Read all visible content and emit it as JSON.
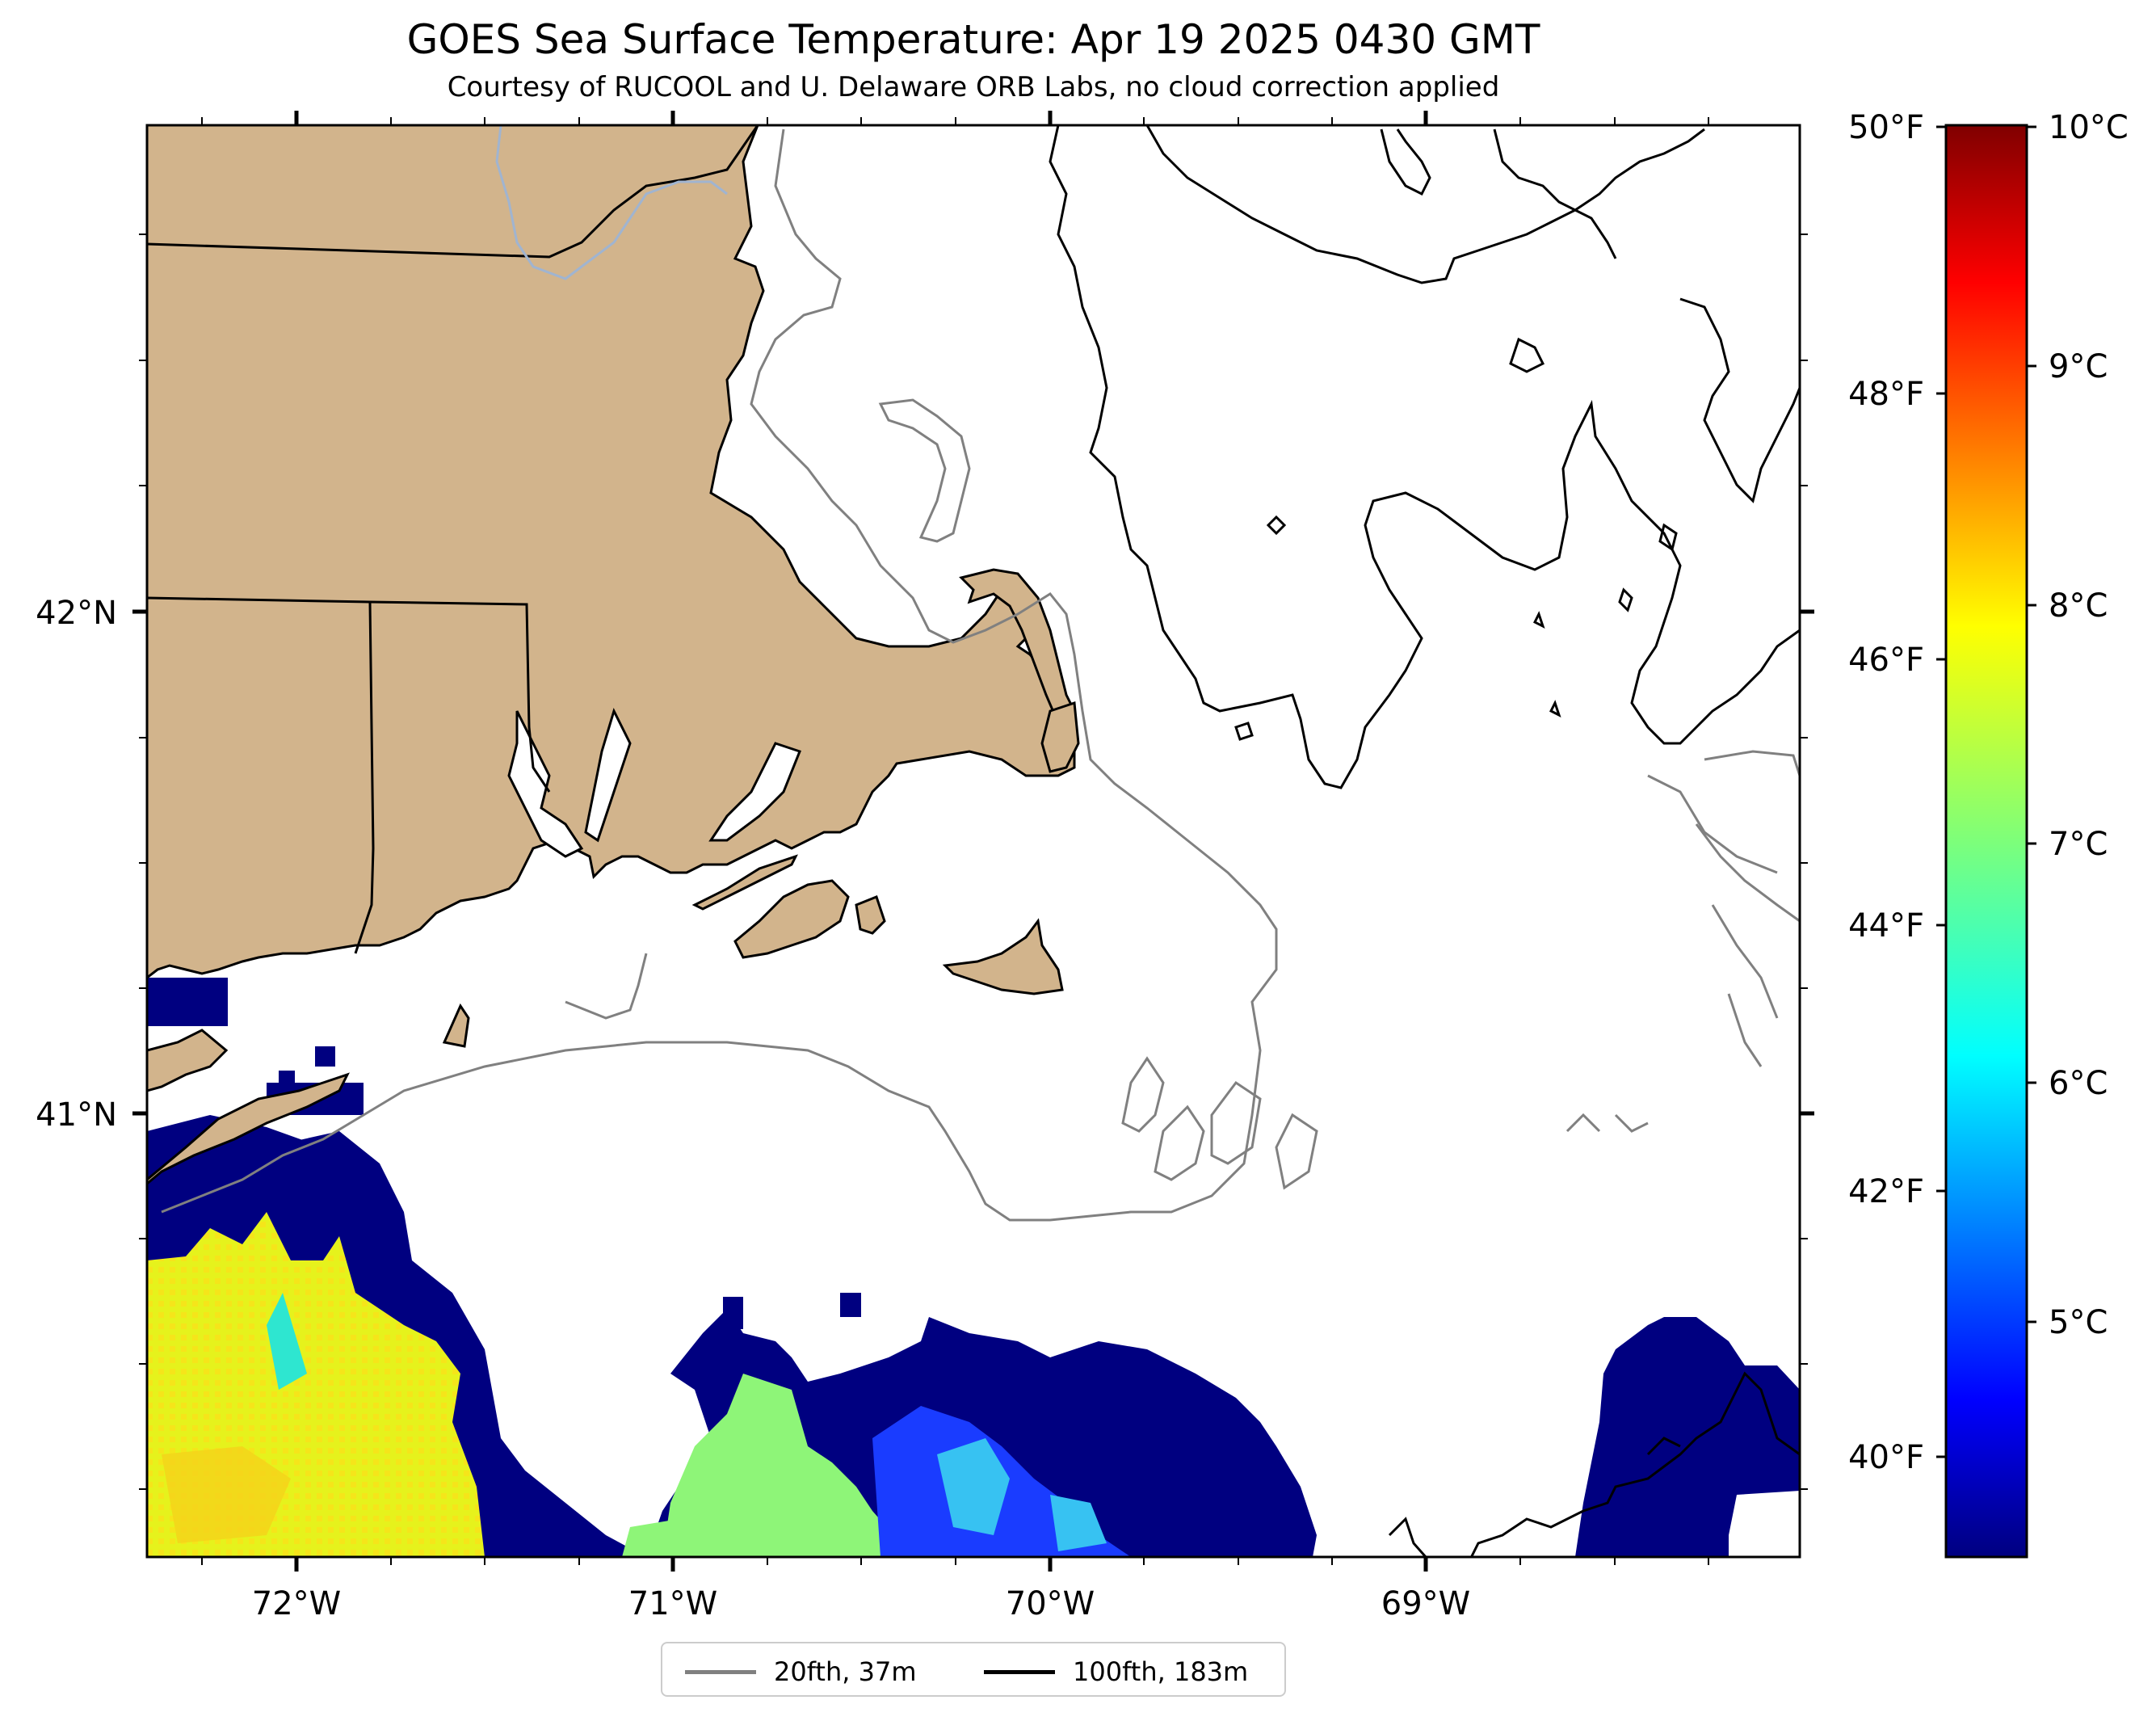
{
  "header": {
    "title": "GOES Sea Surface Temperature: Apr 19 2025 0430 GMT",
    "subtitle": "Courtesy of RUCOOL and U. Delaware ORB Labs, no cloud correction applied"
  },
  "map": {
    "lon_ticks": [
      "72°W",
      "71°W",
      "70°W",
      "69°W"
    ],
    "lat_ticks": [
      "42°N",
      "41°N"
    ],
    "land_color": "#d2b48c",
    "coast_color": "#000000",
    "river_color": "#a0b4d0",
    "contour_20_color": "#808080",
    "contour_100_color": "#000000"
  },
  "colorbar": {
    "fahrenheit_ticks": [
      "50°F",
      "48°F",
      "46°F",
      "44°F",
      "42°F",
      "40°F"
    ],
    "celsius_ticks": [
      "10°C",
      "9°C",
      "8°C",
      "7°C",
      "6°C",
      "5°C"
    ],
    "colormap": "jet"
  },
  "legend": {
    "items": [
      {
        "label": "20fth, 37m",
        "color": "#808080"
      },
      {
        "label": "100fth, 183m",
        "color": "#000000"
      }
    ]
  }
}
